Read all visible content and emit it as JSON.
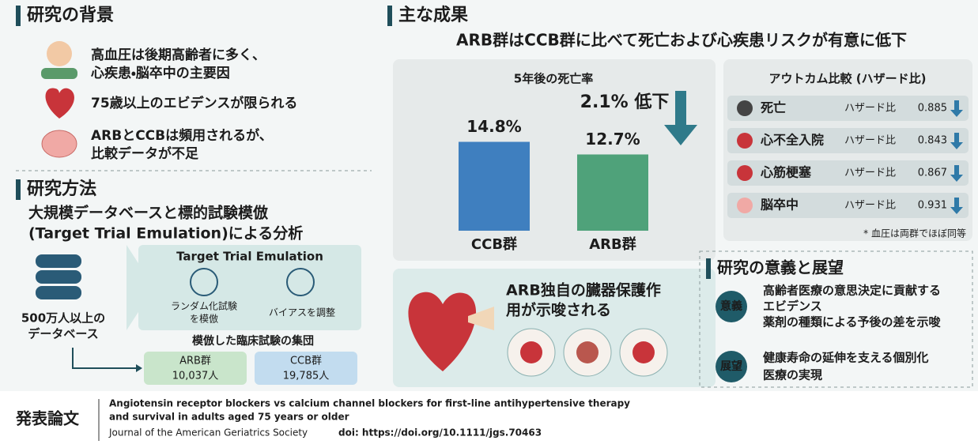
{
  "background": {
    "title": "研究の背景",
    "items": [
      [
        "高血圧は後期高齢者に多く、",
        "心疾患・脳卒中の主要因"
      ],
      [
        "75歳以上のエビデンスが限られる"
      ],
      [
        "ARBとCCBは頻用されるが、",
        "比較データが不足"
      ]
    ]
  },
  "methods": {
    "title": "研究方法",
    "subtitle": [
      "大規模データベースと標的試験模倣",
      "(Target Trial Emulation)による分析"
    ],
    "database": [
      "500万人以上の",
      "データベース"
    ],
    "tte": {
      "title": "Target Trial Emulation",
      "steps": [
        [
          "ランダム化試験",
          "を模倣"
        ],
        [
          "バイアスを調整"
        ]
      ]
    },
    "cohort_title": "模倣した臨床試験の集団",
    "groups": [
      {
        "name": "ARB群",
        "n": "10,037人"
      },
      {
        "name": "CCB群",
        "n": "19,785人"
      }
    ]
  },
  "results": {
    "title": "主な成果",
    "headline": "ARB群はCCB群に比べて死亡および心疾患リスクが有意に低下",
    "mortality": {
      "title": "5年後の死亡率",
      "categories": [
        "CCB群",
        "ARB群"
      ],
      "values": [
        14.8,
        12.7
      ],
      "value_labels": [
        "14.8%",
        "12.7%"
      ],
      "colors": [
        "#3f7fbf",
        "#4fa27a"
      ],
      "reduction": "2.1% 低下"
    },
    "outcomes": {
      "title": "アウトカム比較 (ハザード比)",
      "hr_label": "ハザード比",
      "rows": [
        {
          "name": "死亡",
          "hr": 0.885
        },
        {
          "name": "心不全入院",
          "hr": 0.843
        },
        {
          "name": "心筋梗塞",
          "hr": 0.867
        },
        {
          "name": "脳卒中",
          "hr": 0.931
        }
      ],
      "note": "* 血圧は両群でほぼ同等"
    },
    "organ": [
      "ARB独自の臓器保護作",
      "用が示唆される"
    ]
  },
  "significance": {
    "title": "研究の意義と展望",
    "items": [
      {
        "tag": "意義",
        "lines": [
          "高齢者医療の意思決定に貢献する",
          "エビデンス",
          "薬剤の種類による予後の差を示唆"
        ]
      },
      {
        "tag": "展望",
        "lines": [
          "健康寿命の延伸を支える個別化",
          "医療の実現"
        ]
      }
    ]
  },
  "publication": {
    "label": "発表論文",
    "title": [
      "Angiotensin receptor blockers vs calcium channel blockers for first-line antihypertensive therapy",
      "and survival in adults aged 75 years or older"
    ],
    "journal": "Journal of the American Geriatrics Society",
    "doi": "doi: https://doi.org/10.1111/jgs.70463"
  }
}
